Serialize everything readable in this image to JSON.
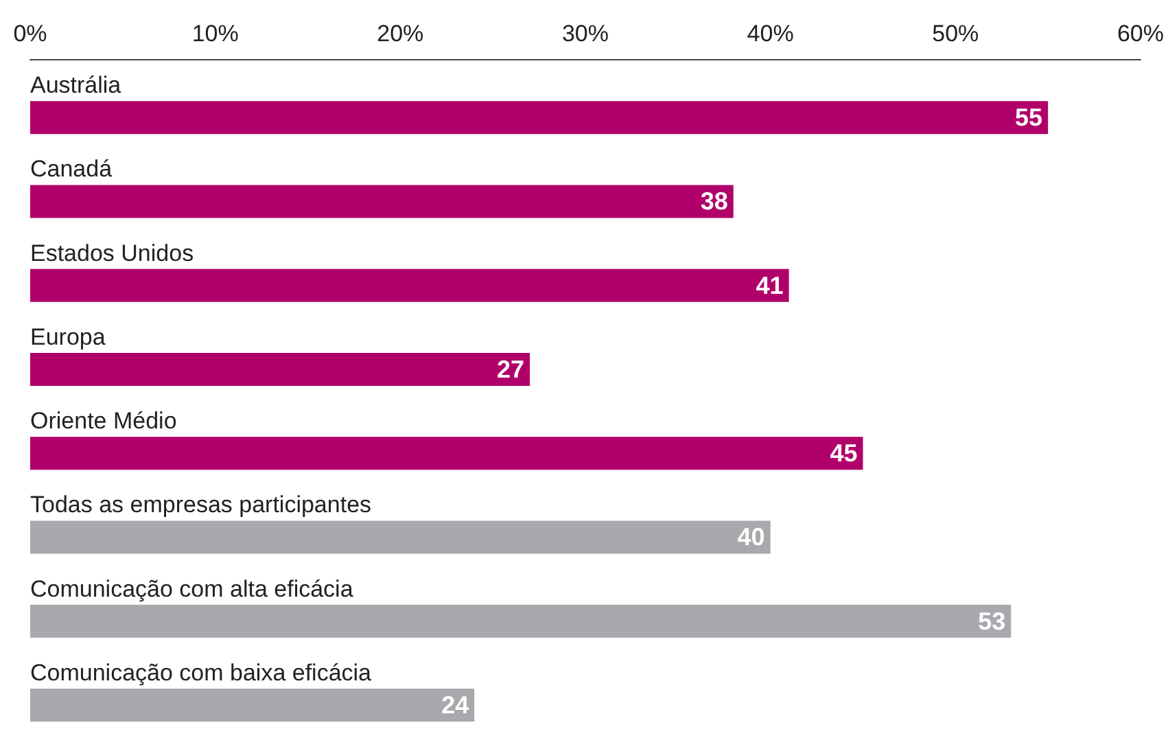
{
  "chart_data": {
    "type": "bar",
    "orientation": "horizontal",
    "categories": [
      "Austrália",
      "Canadá",
      "Estados Unidos",
      "Europa",
      "Oriente Médio",
      "Todas as empresas participantes",
      "Comunicação com alta eficácia",
      "Comunicação com baixa eficácia"
    ],
    "values": [
      55,
      38,
      41,
      27,
      45,
      40,
      53,
      24
    ],
    "colors": [
      "#b0006a",
      "#b0006a",
      "#b0006a",
      "#b0006a",
      "#b0006a",
      "#a7a9ac",
      "#a7a9ac",
      "#a7a9ac"
    ],
    "xlim": [
      0,
      60
    ],
    "xticks": [
      {
        "value": 0,
        "label": "0%"
      },
      {
        "value": 10,
        "label": "10%"
      },
      {
        "value": 20,
        "label": "20%"
      },
      {
        "value": 30,
        "label": "30%"
      },
      {
        "value": 40,
        "label": "40%"
      },
      {
        "value": 50,
        "label": "50%"
      },
      {
        "value": 60,
        "label": "60%"
      }
    ],
    "data_labels": true,
    "grid": false
  }
}
